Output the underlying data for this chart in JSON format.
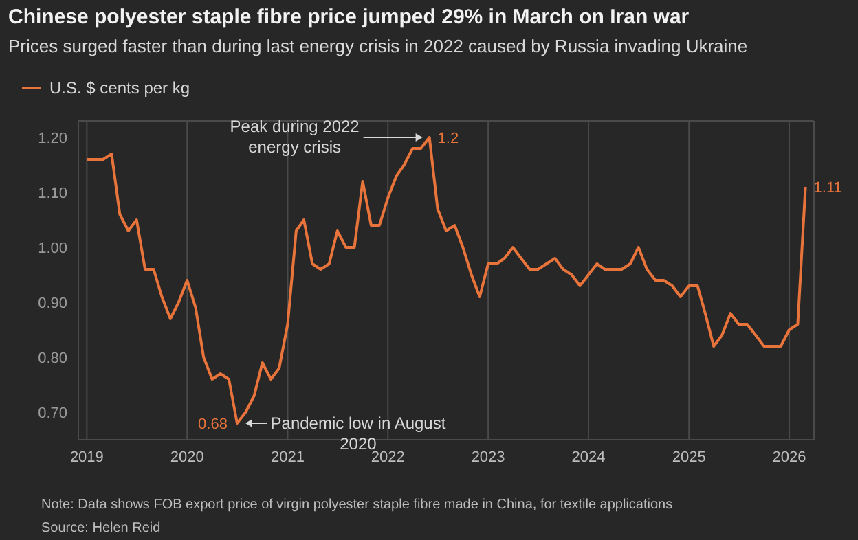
{
  "chart_data": {
    "type": "line",
    "title": "Chinese polyester staple fibre price jumped 29% in March on Iran war",
    "subtitle": "Prices surged faster than during last energy crisis in 2022 caused by Russia invading Ukraine",
    "x": [
      "2019-01",
      "2019-02",
      "2019-03",
      "2019-04",
      "2019-05",
      "2019-06",
      "2019-07",
      "2019-08",
      "2019-09",
      "2019-10",
      "2019-11",
      "2019-12",
      "2020-01",
      "2020-02",
      "2020-03",
      "2020-04",
      "2020-05",
      "2020-06",
      "2020-07",
      "2020-08",
      "2020-09",
      "2020-10",
      "2020-11",
      "2020-12",
      "2021-01",
      "2021-02",
      "2021-03",
      "2021-04",
      "2021-05",
      "2021-06",
      "2021-07",
      "2021-08",
      "2021-09",
      "2021-10",
      "2021-11",
      "2021-12",
      "2022-01",
      "2022-02",
      "2022-03",
      "2022-04",
      "2022-05",
      "2022-06",
      "2022-07",
      "2022-08",
      "2022-09",
      "2022-10",
      "2022-11",
      "2022-12",
      "2023-01",
      "2023-02",
      "2023-03",
      "2023-04",
      "2023-05",
      "2023-06",
      "2023-07",
      "2023-08",
      "2023-09",
      "2023-10",
      "2023-11",
      "2023-12",
      "2024-01",
      "2024-02",
      "2024-03",
      "2024-04",
      "2024-05",
      "2024-06",
      "2024-07",
      "2024-08",
      "2024-09",
      "2024-10",
      "2024-11",
      "2024-12",
      "2025-01",
      "2025-02",
      "2025-03",
      "2025-04",
      "2025-05",
      "2025-06",
      "2025-07",
      "2025-08",
      "2025-09",
      "2025-10",
      "2025-11",
      "2025-12",
      "2026-01",
      "2026-02",
      "2026-03"
    ],
    "series": [
      {
        "name": "U.S. $ cents per kg",
        "color": "#e8743b",
        "values": [
          1.16,
          1.16,
          1.16,
          1.17,
          1.06,
          1.03,
          1.05,
          0.96,
          0.96,
          0.91,
          0.87,
          0.9,
          0.94,
          0.89,
          0.8,
          0.76,
          0.77,
          0.76,
          0.68,
          0.7,
          0.73,
          0.79,
          0.76,
          0.78,
          0.86,
          1.03,
          1.05,
          0.97,
          0.96,
          0.97,
          1.03,
          1.0,
          1.0,
          1.12,
          1.04,
          1.04,
          1.09,
          1.13,
          1.15,
          1.18,
          1.18,
          1.2,
          1.07,
          1.03,
          1.04,
          1.0,
          0.95,
          0.91,
          0.97,
          0.97,
          0.98,
          1.0,
          0.98,
          0.96,
          0.96,
          0.97,
          0.98,
          0.96,
          0.95,
          0.93,
          0.95,
          0.97,
          0.96,
          0.96,
          0.96,
          0.97,
          1.0,
          0.96,
          0.94,
          0.94,
          0.93,
          0.91,
          0.93,
          0.93,
          0.88,
          0.82,
          0.84,
          0.88,
          0.86,
          0.86,
          0.84,
          0.82,
          0.82,
          0.82,
          0.85,
          0.86,
          1.11
        ],
        "value_labels": [
          null,
          null,
          null,
          null,
          null,
          null,
          null,
          null,
          null,
          null,
          null,
          null,
          null,
          null,
          null,
          null,
          null,
          null,
          "0.68",
          null,
          null,
          null,
          null,
          null,
          null,
          null,
          null,
          null,
          null,
          null,
          null,
          null,
          null,
          null,
          null,
          null,
          null,
          null,
          null,
          null,
          null,
          "1.2",
          null,
          null,
          null,
          null,
          null,
          null,
          null,
          null,
          null,
          null,
          null,
          null,
          null,
          null,
          null,
          null,
          null,
          null,
          null,
          null,
          null,
          null,
          null,
          null,
          null,
          null,
          null,
          null,
          null,
          null,
          null,
          null,
          null,
          null,
          null,
          null,
          null,
          null,
          null,
          null,
          null,
          null,
          null,
          null,
          "1.11"
        ]
      }
    ],
    "xlim": [
      "2018-12",
      "2026-04"
    ],
    "xticks": [
      "2019",
      "2020",
      "2021",
      "2022",
      "2023",
      "2024",
      "2025",
      "2026"
    ],
    "ylim": [
      0.65,
      1.23
    ],
    "yticks": [
      {
        "value": 0.7,
        "label": "0.70"
      },
      {
        "value": 0.8,
        "label": "0.80"
      },
      {
        "value": 0.9,
        "label": "0.90"
      },
      {
        "value": 1.0,
        "label": "1.00"
      },
      {
        "value": 1.1,
        "label": "1.10"
      },
      {
        "value": 1.2,
        "label": "1.20"
      }
    ],
    "grid": true,
    "legend": "top left",
    "marker": "none",
    "line_style": "solid",
    "annotations": [
      {
        "text": "Peak during 2022 energy crisis",
        "x": "2022-06",
        "y": 1.2
      },
      {
        "text": "Pandemic low in August 2020",
        "x": "2020-07",
        "y": 0.68
      },
      "Note: Data shows FOB export price of virgin polyester staple fibre made in China, for textile applications",
      "Source: Helen Reid"
    ]
  }
}
